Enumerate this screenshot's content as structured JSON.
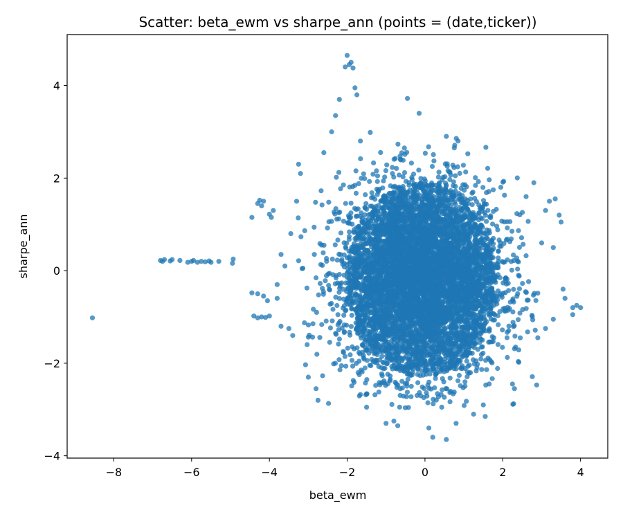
{
  "chart_data": {
    "type": "scatter",
    "title": "Scatter: beta_ewm vs sharpe_ann (points = (date,ticker))",
    "xlabel": "beta_ewm",
    "ylabel": "sharpe_ann",
    "xlim": [
      -9.2,
      4.7
    ],
    "ylim": [
      -4.05,
      5.1
    ],
    "xticks": [
      -8,
      -6,
      -4,
      -2,
      0,
      2,
      4
    ],
    "yticks": [
      -4,
      -2,
      0,
      2,
      4
    ],
    "xtick_labels": [
      "−8",
      "−6",
      "−4",
      "−2",
      "0",
      "2",
      "4"
    ],
    "ytick_labels": [
      "−4",
      "−2",
      "0",
      "2",
      "4"
    ],
    "grid": false,
    "marker_color": "#1f77b4",
    "marker_opacity": 0.75,
    "core_cloud": {
      "x_center": -0.1,
      "y_center": -0.2,
      "x_range": [
        -3.3,
        3.0
      ],
      "y_range": [
        -3.0,
        3.0
      ]
    },
    "points": [
      {
        "x": -8.55,
        "y": -1.02
      },
      {
        "x": -6.8,
        "y": 0.22
      },
      {
        "x": -6.75,
        "y": 0.2
      },
      {
        "x": -6.7,
        "y": 0.24
      },
      {
        "x": -6.55,
        "y": 0.21
      },
      {
        "x": -6.5,
        "y": 0.24
      },
      {
        "x": -6.3,
        "y": 0.22
      },
      {
        "x": -6.1,
        "y": 0.18
      },
      {
        "x": -6.0,
        "y": 0.2
      },
      {
        "x": -5.95,
        "y": 0.22
      },
      {
        "x": -5.85,
        "y": 0.18
      },
      {
        "x": -5.75,
        "y": 0.2
      },
      {
        "x": -5.65,
        "y": 0.19
      },
      {
        "x": -5.55,
        "y": 0.21
      },
      {
        "x": -5.5,
        "y": 0.18
      },
      {
        "x": -5.3,
        "y": 0.2
      },
      {
        "x": -4.95,
        "y": 0.16
      },
      {
        "x": -4.93,
        "y": 0.25
      },
      {
        "x": -4.45,
        "y": 1.15
      },
      {
        "x": -4.3,
        "y": 1.45
      },
      {
        "x": -4.25,
        "y": 1.52
      },
      {
        "x": -4.2,
        "y": 1.4
      },
      {
        "x": -4.15,
        "y": 1.5
      },
      {
        "x": -4.0,
        "y": 1.22
      },
      {
        "x": -3.95,
        "y": 1.15
      },
      {
        "x": -3.9,
        "y": 1.3
      },
      {
        "x": -4.45,
        "y": -0.48
      },
      {
        "x": -4.3,
        "y": -0.5
      },
      {
        "x": -4.15,
        "y": -0.55
      },
      {
        "x": -4.05,
        "y": -0.65
      },
      {
        "x": -4.4,
        "y": -0.98
      },
      {
        "x": -4.3,
        "y": -1.02
      },
      {
        "x": -4.2,
        "y": -1.0
      },
      {
        "x": -4.1,
        "y": -1.01
      },
      {
        "x": -4.0,
        "y": -0.98
      },
      {
        "x": -2.0,
        "y": 4.65
      },
      {
        "x": -1.95,
        "y": 4.45
      },
      {
        "x": -1.9,
        "y": 4.5
      },
      {
        "x": -1.85,
        "y": 4.38
      },
      {
        "x": -2.05,
        "y": 4.4
      },
      {
        "x": -1.8,
        "y": 3.95
      },
      {
        "x": -1.75,
        "y": 3.8
      },
      {
        "x": -2.2,
        "y": 3.7
      },
      {
        "x": -2.3,
        "y": 3.35
      },
      {
        "x": -0.45,
        "y": 3.72
      },
      {
        "x": -0.15,
        "y": 3.4
      },
      {
        "x": 0.55,
        "y": 2.9
      },
      {
        "x": 0.85,
        "y": 2.8
      },
      {
        "x": 2.6,
        "y": 1.6
      },
      {
        "x": 2.8,
        "y": 1.9
      },
      {
        "x": 3.2,
        "y": 1.5
      },
      {
        "x": 3.35,
        "y": 1.55
      },
      {
        "x": 3.1,
        "y": 1.3
      },
      {
        "x": 3.45,
        "y": 1.2
      },
      {
        "x": 3.5,
        "y": 1.05
      },
      {
        "x": 3.0,
        "y": 0.6
      },
      {
        "x": 3.3,
        "y": 0.5
      },
      {
        "x": 3.55,
        "y": -0.4
      },
      {
        "x": 3.6,
        "y": -0.6
      },
      {
        "x": 3.8,
        "y": -0.8
      },
      {
        "x": 3.9,
        "y": -0.75
      },
      {
        "x": 4.0,
        "y": -0.8
      },
      {
        "x": 3.8,
        "y": -0.95
      },
      {
        "x": 3.3,
        "y": -1.05
      },
      {
        "x": 3.1,
        "y": -1.25
      },
      {
        "x": 2.9,
        "y": -1.45
      },
      {
        "x": 2.3,
        "y": -2.55
      },
      {
        "x": 2.25,
        "y": -2.45
      },
      {
        "x": 1.5,
        "y": -2.9
      },
      {
        "x": 1.55,
        "y": -3.15
      },
      {
        "x": 1.25,
        "y": -3.1
      },
      {
        "x": 0.8,
        "y": -3.3
      },
      {
        "x": 0.55,
        "y": -3.65
      },
      {
        "x": 0.2,
        "y": -3.6
      },
      {
        "x": 0.1,
        "y": -3.4
      },
      {
        "x": -0.7,
        "y": -3.35
      },
      {
        "x": -0.8,
        "y": -3.25
      },
      {
        "x": -1.0,
        "y": -3.3
      },
      {
        "x": -1.5,
        "y": -2.95
      },
      {
        "x": -2.8,
        "y": -2.55
      },
      {
        "x": -2.75,
        "y": -2.8
      },
      {
        "x": -3.0,
        "y": -2.3
      },
      {
        "x": -3.4,
        "y": -1.4
      },
      {
        "x": -3.5,
        "y": -1.25
      },
      {
        "x": -3.7,
        "y": -1.2
      },
      {
        "x": -3.8,
        "y": -0.6
      },
      {
        "x": -3.8,
        "y": -0.3
      },
      {
        "x": -3.7,
        "y": 0.35
      },
      {
        "x": -3.6,
        "y": 0.1
      },
      {
        "x": -3.45,
        "y": 0.8
      },
      {
        "x": -3.3,
        "y": 1.5
      },
      {
        "x": -3.25,
        "y": 2.3
      },
      {
        "x": -3.2,
        "y": 2.1
      },
      {
        "x": -2.6,
        "y": 2.55
      },
      {
        "x": -2.4,
        "y": 3.0
      }
    ]
  }
}
